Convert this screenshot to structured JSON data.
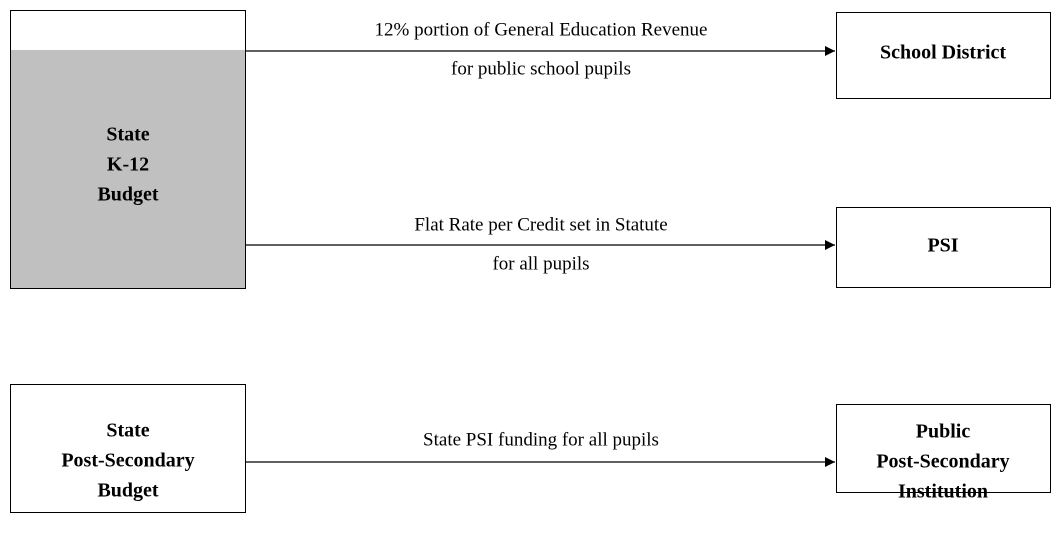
{
  "nodes": [
    {
      "label": [
        "State",
        "K-12",
        "Budget"
      ]
    },
    {
      "label": [
        "School District"
      ]
    },
    {
      "label": [
        "PSI"
      ]
    },
    {
      "label": [
        "State",
        "Post-Secondary",
        "Budget"
      ]
    },
    {
      "label": [
        "Public",
        "Post-Secondary",
        "Institution"
      ]
    }
  ],
  "edges": [
    {
      "label": [
        "12% portion of General Education Revenue",
        "for public school pupils"
      ]
    },
    {
      "label": [
        "Flat Rate per Credit set in Statute",
        "for all pupils"
      ]
    },
    {
      "label": [
        "State PSI funding for all pupils"
      ]
    }
  ]
}
